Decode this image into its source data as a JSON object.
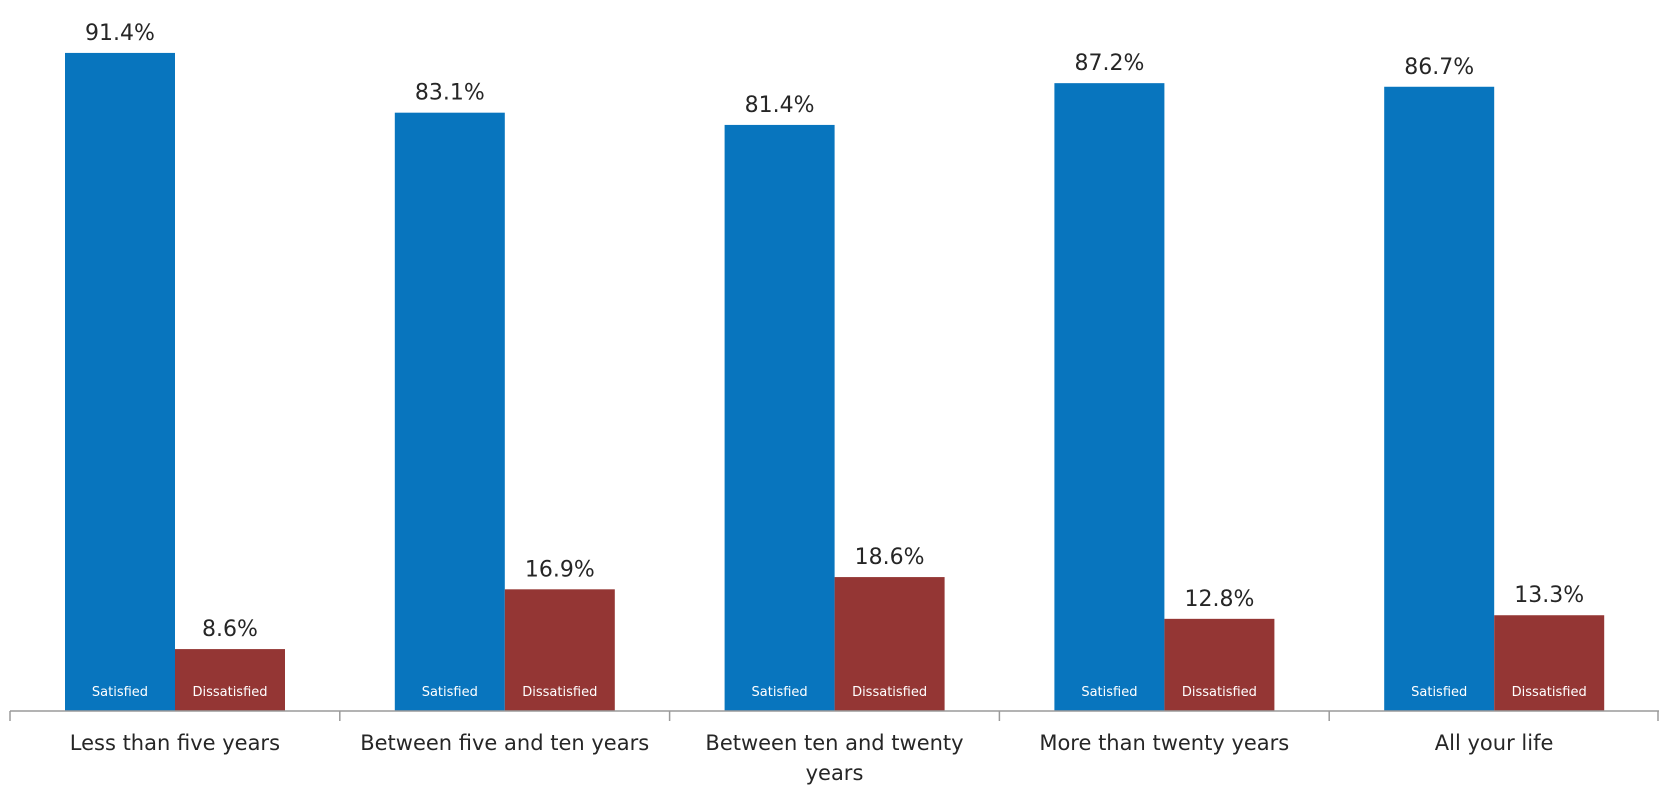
{
  "colors": {
    "satisfied": "#0875BE",
    "dissatisfied": "#943634",
    "axis": "#9a9a9a"
  },
  "chart_data": {
    "type": "bar",
    "categories": [
      [
        "Less than five years"
      ],
      [
        "Between five and ten years"
      ],
      [
        "Between ten and twenty",
        "years"
      ],
      [
        "More than twenty years"
      ],
      [
        "All your life"
      ]
    ],
    "series": [
      {
        "name": "Satisfied",
        "values": [
          91.4,
          83.1,
          81.4,
          87.2,
          86.7
        ],
        "labels": [
          "91.4%",
          "83.1%",
          "81.4%",
          "87.2%",
          "86.7%"
        ]
      },
      {
        "name": "Dissatisfied",
        "values": [
          8.6,
          16.9,
          18.6,
          12.8,
          13.3
        ],
        "labels": [
          "8.6%",
          "16.9%",
          "18.6%",
          "12.8%",
          "13.3%"
        ]
      }
    ],
    "ylim": [
      0,
      100
    ],
    "grid": false,
    "legend": "none"
  }
}
